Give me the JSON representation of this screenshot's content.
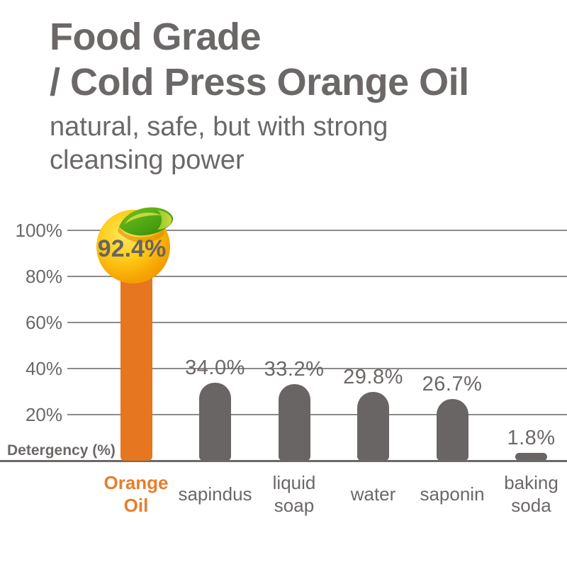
{
  "header": {
    "title_line1": "Food Grade",
    "title_line2": "/ Cold Press Orange Oil",
    "subtitle_line1": "natural, safe, but with strong",
    "subtitle_line2": "cleansing power"
  },
  "chart_data": {
    "type": "bar",
    "categories": [
      "Orange Oil",
      "sapindus",
      "liquid soap",
      "water",
      "saponin",
      "baking soda"
    ],
    "category_lines": [
      "Orange\nOil",
      "sapindus",
      "liquid\nsoap",
      "water",
      "saponin",
      "baking\nsoda"
    ],
    "values": [
      92.4,
      34.0,
      33.2,
      29.8,
      26.7,
      1.8
    ],
    "value_labels": [
      "92.4%",
      "34.0%",
      "33.2%",
      "29.8%",
      "26.7%",
      "1.8%"
    ],
    "ylabel": "Detergency (%)",
    "yticks": [
      20,
      40,
      60,
      80,
      100
    ],
    "ytick_labels": [
      "20%",
      "40%",
      "60%",
      "80%",
      "100%"
    ],
    "ylim": [
      0,
      108
    ],
    "grid": true,
    "legend": "none",
    "highlight_index": 0,
    "highlight_marker": "orange-fruit-with-leaf",
    "colors": {
      "bar": "#696564",
      "highlight_bar": "#e6761f",
      "highlight_category_text": "#e77e2c",
      "text": "#6b6867",
      "gridline": "#8d8a89",
      "fruit_yellow": "#fecb17",
      "fruit_orange": "#f29b05",
      "leaf_green": "#4ea613",
      "leaf_light": "#b3d334"
    }
  }
}
